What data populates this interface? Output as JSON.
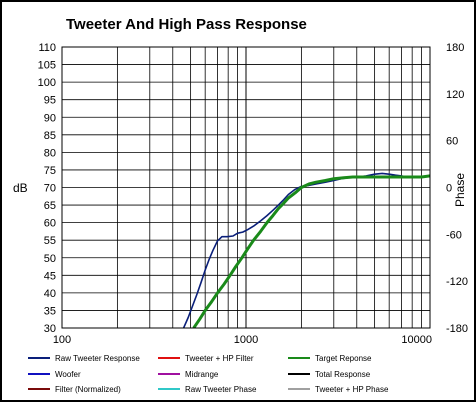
{
  "chart_data": {
    "type": "line",
    "title": "Tweeter  And High Pass Response",
    "ylabel": "dB",
    "ylabel_right": "Phase",
    "xscale": "log",
    "xlim": [
      100,
      10000
    ],
    "ylim": [
      30,
      110
    ],
    "y2lim": [
      -180,
      180
    ],
    "x_ticks": [
      "100",
      "1000",
      "10000"
    ],
    "y_ticks": [
      "110",
      "105",
      "100",
      "95",
      "90",
      "85",
      "80",
      "75",
      "70",
      "65",
      "60",
      "55",
      "50",
      "45",
      "40",
      "35",
      "30"
    ],
    "y2_ticks": [
      "180",
      "120",
      "60",
      "0",
      "-60",
      "-120",
      "-180"
    ],
    "grid": true,
    "legend_position": "bottom",
    "series": [
      {
        "name": "Raw Tweeter Response",
        "color": "#0a1f7a",
        "x": [
          458,
          485,
          510,
          540,
          570,
          600,
          630,
          660,
          700,
          740,
          790,
          850,
          900,
          960,
          1020,
          1100,
          1200,
          1300,
          1400,
          1500,
          1600,
          1700,
          1850,
          2000,
          2200,
          2400,
          2700,
          3000,
          3300,
          3600,
          4000,
          4500,
          5000,
          5500,
          6000,
          6500,
          7000,
          7500,
          8000,
          9000,
          10000
        ],
        "values": [
          30,
          33,
          36,
          39.5,
          43,
          46.5,
          49.5,
          52,
          54.8,
          56,
          56,
          56.2,
          57,
          57.3,
          58,
          59,
          60.5,
          62,
          63.5,
          65,
          66.5,
          68,
          69.5,
          70.3,
          70.6,
          71,
          71.5,
          72,
          72.5,
          72.8,
          73,
          73.3,
          73.8,
          74,
          73.8,
          73.5,
          73.3,
          73,
          73,
          73,
          73.3
        ]
      },
      {
        "name": "Tweeter + HP Filter",
        "color": "#e01010",
        "x": [],
        "values": []
      },
      {
        "name": "Target Reponse",
        "color": "#1a8a1a",
        "x": [
          520,
          560,
          600,
          650,
          700,
          760,
          820,
          880,
          950,
          1020,
          1100,
          1200,
          1300,
          1400,
          1500,
          1600,
          1700,
          1850,
          2000,
          2200,
          2400,
          2700,
          3000,
          3400,
          3800,
          4300,
          5000,
          6000,
          7000,
          8000,
          9000,
          10000
        ],
        "values": [
          30,
          32.5,
          35,
          37.5,
          40,
          42.5,
          45,
          47.5,
          50,
          52.5,
          55,
          57.5,
          60,
          62,
          64,
          65.5,
          67,
          68.5,
          70,
          71,
          71.5,
          72,
          72.5,
          72.8,
          73,
          73,
          73,
          73,
          73,
          73,
          73,
          73.3
        ]
      },
      {
        "name": "Woofer",
        "color": "#1010c0",
        "x": [],
        "values": []
      },
      {
        "name": "Midrange",
        "color": "#a010a0",
        "x": [],
        "values": []
      },
      {
        "name": "Total Response",
        "color": "#000000",
        "x": [],
        "values": []
      },
      {
        "name": "Filter (Normalized)",
        "color": "#7a0a0a",
        "x": [],
        "values": []
      },
      {
        "name": "Raw Tweeter Phase",
        "color": "#30c8c8",
        "x": [],
        "values": []
      },
      {
        "name": "Tweeter + HP Phase",
        "color": "#a0a0a0",
        "x": [],
        "values": []
      }
    ]
  }
}
